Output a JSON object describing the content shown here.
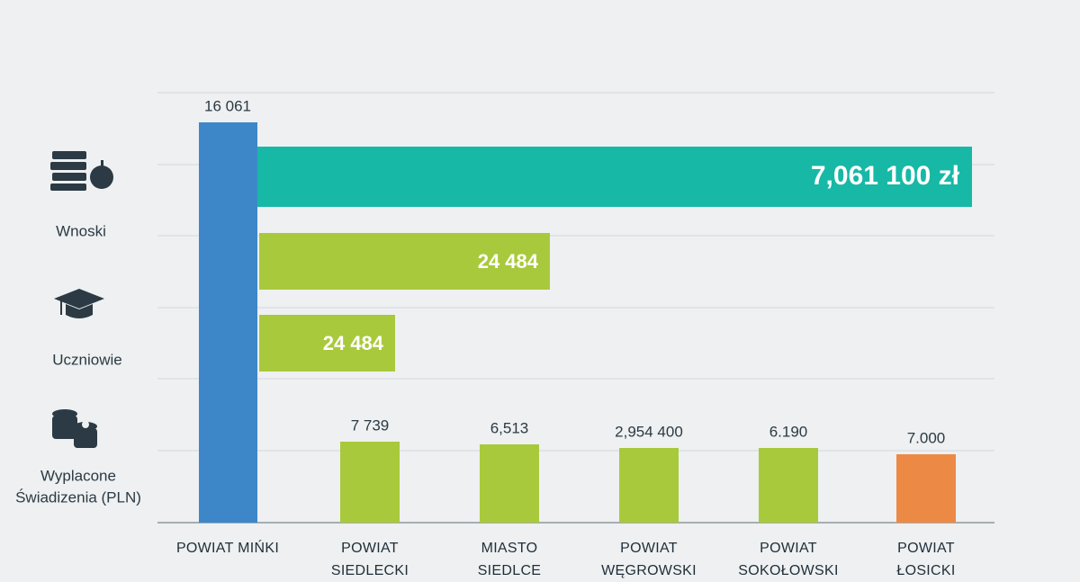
{
  "side_labels": [
    [
      "Wnoski"
    ],
    [
      "Uczniowie"
    ],
    [
      "Wyplacone",
      "Świadizenia (PLN)"
    ]
  ],
  "bar_labels": [
    "7,061 100 zł",
    "24 484",
    "24 484"
  ],
  "columns": [
    {
      "label": "16 061",
      "name": [
        "POWIAT MIŃKI"
      ]
    },
    {
      "label": "7 739",
      "name": [
        "POWIAT",
        "SIEDLECKI"
      ]
    },
    {
      "label": "6,513",
      "name": [
        "MIASTO",
        "SIEDLCE"
      ]
    },
    {
      "label": "2,954 400",
      "name": [
        "POWIAT",
        "WĘGROWSKI"
      ]
    },
    {
      "label": "6.190",
      "name": [
        "POWIAT",
        "SOKOŁOWSKI"
      ]
    },
    {
      "label": "7.000",
      "name": [
        "POWIAT",
        "ŁOSICKI"
      ]
    }
  ]
}
